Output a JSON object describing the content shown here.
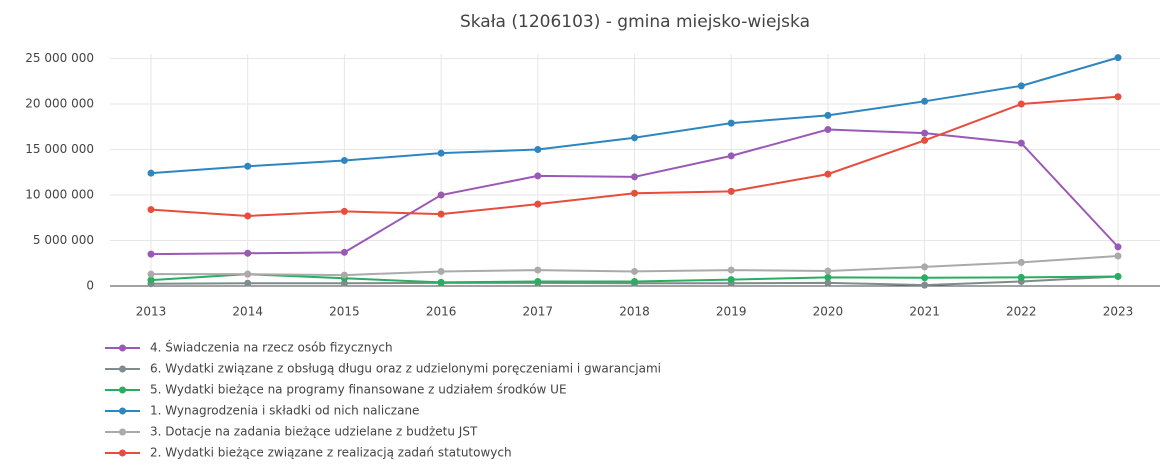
{
  "chart_data": {
    "type": "line",
    "title": "Skała (1206103) - gmina miejsko-wiejska",
    "categories": [
      "2013",
      "2014",
      "2015",
      "2016",
      "2017",
      "2018",
      "2019",
      "2020",
      "2021",
      "2022",
      "2023"
    ],
    "series": [
      {
        "name": "4. Świadczenia na rzecz osób fizycznych",
        "color": "#9b59b6",
        "values": [
          3500000,
          3600000,
          3700000,
          10000000,
          12100000,
          12000000,
          14300000,
          17200000,
          16800000,
          15700000,
          4300000
        ]
      },
      {
        "name": "6. Wydatki związane z obsługą długu oraz z udzielonymi poręczeniami i gwarancjami",
        "color": "#7f8c8d",
        "values": [
          250000,
          300000,
          300000,
          350000,
          350000,
          300000,
          300000,
          350000,
          100000,
          500000,
          1050000
        ]
      },
      {
        "name": "5. Wydatki bieżące na programy finansowane z udziałem środków UE",
        "color": "#27ae60",
        "values": [
          650000,
          1300000,
          850000,
          400000,
          500000,
          500000,
          700000,
          950000,
          900000,
          950000,
          1050000
        ]
      },
      {
        "name": "1. Wynagrodzenia i składki od nich naliczane",
        "color": "#2e86c1",
        "values": [
          12400000,
          13160000,
          13800000,
          14600000,
          15000000,
          16300000,
          17900000,
          18750000,
          20300000,
          22000000,
          25100000
        ]
      },
      {
        "name": "3. Dotacje na zadania bieżące udzielane z budżetu JST",
        "color": "#aaaaaa",
        "values": [
          1300000,
          1300000,
          1200000,
          1600000,
          1750000,
          1600000,
          1750000,
          1650000,
          2100000,
          2600000,
          3300000
        ]
      },
      {
        "name": "2. Wydatki bieżące związane z realizacją zadań statutowych",
        "color": "#e74c3c",
        "values": [
          8400000,
          7700000,
          8200000,
          7900000,
          9000000,
          10200000,
          10400000,
          12300000,
          16000000,
          20000000,
          20800000
        ]
      }
    ],
    "ylim": [
      0,
      25500000
    ],
    "yticks": [
      {
        "value": 0,
        "label": "0"
      },
      {
        "value": 5000000,
        "label": "5 000 000"
      },
      {
        "value": 10000000,
        "label": "10 000 000"
      },
      {
        "value": 15000000,
        "label": "15 000 000"
      },
      {
        "value": 20000000,
        "label": "20 000 000"
      },
      {
        "value": 25000000,
        "label": "25 000 000"
      }
    ],
    "grid": true
  }
}
